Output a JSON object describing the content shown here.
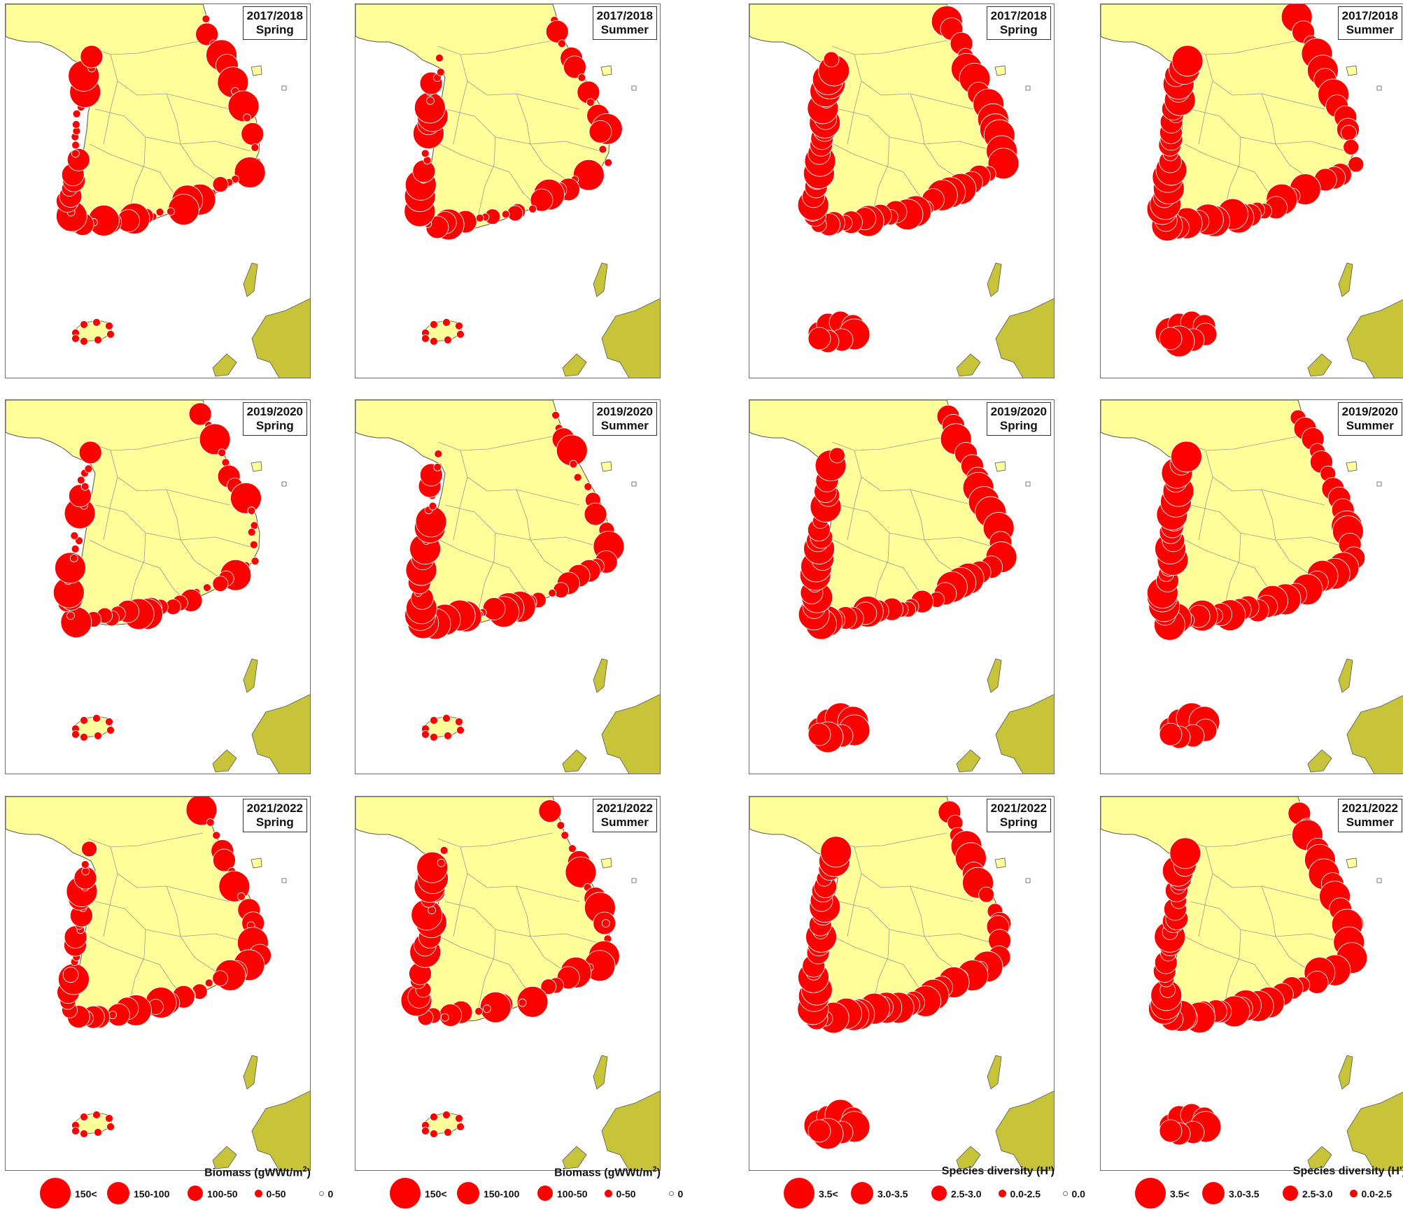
{
  "colors": {
    "land": "#ffff99",
    "japan": "#c8c43a",
    "water": "#ffffff",
    "marker": "#ff0000",
    "marker_stroke": "#ffffff",
    "province_line": "#9a9a9a",
    "frame": "#6b6b6b"
  },
  "panels": [
    {
      "period": "2017/2018",
      "season": "Spring",
      "metric": "biomass"
    },
    {
      "period": "2017/2018",
      "season": "Summer",
      "metric": "biomass"
    },
    {
      "period": "2017/2018",
      "season": "Spring",
      "metric": "diversity"
    },
    {
      "period": "2017/2018",
      "season": "Summer",
      "metric": "diversity"
    },
    {
      "period": "2019/2020",
      "season": "Spring",
      "metric": "biomass"
    },
    {
      "period": "2019/2020",
      "season": "Summer",
      "metric": "biomass"
    },
    {
      "period": "2019/2020",
      "season": "Spring",
      "metric": "diversity"
    },
    {
      "period": "2019/2020",
      "season": "Summer",
      "metric": "diversity"
    },
    {
      "period": "2021/2022",
      "season": "Spring",
      "metric": "biomass"
    },
    {
      "period": "2021/2022",
      "season": "Summer",
      "metric": "biomass"
    },
    {
      "period": "2021/2022",
      "season": "Spring",
      "metric": "diversity"
    },
    {
      "period": "2021/2022",
      "season": "Summer",
      "metric": "diversity"
    }
  ],
  "legends": {
    "biomass": {
      "title_text": "Biomass (gWWt/m",
      "title_sup": "2",
      "title_close": ")",
      "classes": [
        {
          "label": "150<",
          "level": 4
        },
        {
          "label": "150-100",
          "level": 3
        },
        {
          "label": "100-50",
          "level": 2
        },
        {
          "label": "0-50",
          "level": 1
        },
        {
          "label": "0",
          "level": 0
        }
      ]
    },
    "diversity": {
      "title": "Species diversity (H')",
      "classes": [
        {
          "label": "3.5<",
          "level": 4
        },
        {
          "label": "3.0-3.5",
          "level": 3
        },
        {
          "label": "2.5-3.0",
          "level": 2
        },
        {
          "label": "0.0-2.5",
          "level": 1
        },
        {
          "label": "0.0",
          "level": 0
        }
      ]
    }
  }
}
